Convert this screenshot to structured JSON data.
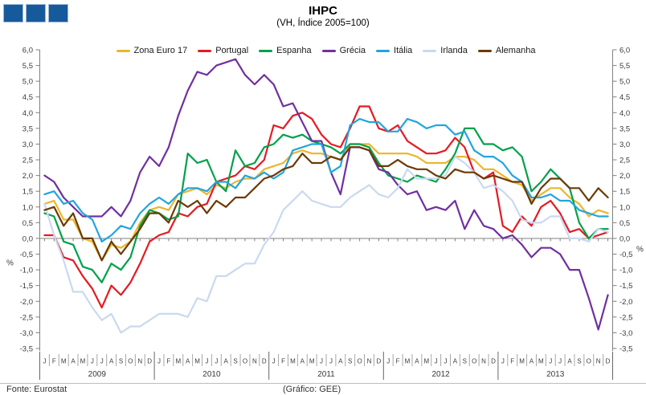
{
  "logo": {
    "square_count": 3,
    "square_color": "#175A9C"
  },
  "header": {
    "title": "IHPC",
    "subtitle": "(VH, Índice 2005=100)"
  },
  "footer": {
    "source": "Fonte: Eurostat",
    "credit": "(Gráfico: GEE)"
  },
  "chart_data": {
    "type": "line",
    "title": "IHPC",
    "subtitle": "(VH, Índice 2005=100)",
    "ylabel": "%",
    "ylim": [
      -3.5,
      6.0
    ],
    "ytick_step": 0.5,
    "decimal_separator": ",",
    "grid": "zero-line-only",
    "legend_position": "top",
    "axis_color": "#808080",
    "label_color": "#3a3a3a",
    "month_letters": [
      "J",
      "F",
      "M",
      "A",
      "M",
      "J",
      "J",
      "A",
      "S",
      "O",
      "N",
      "D"
    ],
    "years": [
      "2009",
      "2010",
      "2011",
      "2012",
      "2013"
    ],
    "series": [
      {
        "name": "Zona Euro 17",
        "color": "#EBB62B",
        "values": [
          1.1,
          1.2,
          0.6,
          0.6,
          0.0,
          -0.1,
          -0.7,
          -0.2,
          -0.3,
          -0.1,
          0.5,
          0.9,
          1.0,
          0.9,
          1.4,
          1.5,
          1.6,
          1.4,
          1.7,
          1.6,
          1.8,
          1.9,
          1.9,
          2.2,
          2.3,
          2.4,
          2.7,
          2.8,
          2.7,
          2.7,
          2.6,
          2.5,
          3.0,
          3.0,
          3.0,
          2.7,
          2.7,
          2.7,
          2.7,
          2.6,
          2.4,
          2.4,
          2.4,
          2.6,
          2.6,
          2.5,
          2.2,
          2.2,
          2.0,
          1.8,
          1.7,
          1.2,
          1.4,
          1.6,
          1.6,
          1.3,
          1.1,
          0.7,
          0.9,
          0.8
        ]
      },
      {
        "name": "Portugal",
        "color": "#E31B23",
        "values": [
          0.1,
          0.1,
          -0.6,
          -0.7,
          -1.2,
          -1.6,
          -2.2,
          -1.5,
          -1.8,
          -1.4,
          -0.8,
          -0.1,
          0.1,
          0.2,
          0.8,
          0.7,
          1.0,
          1.1,
          1.8,
          1.9,
          2.0,
          2.3,
          2.2,
          2.5,
          3.6,
          3.5,
          3.9,
          4.0,
          3.8,
          3.3,
          3.0,
          2.9,
          3.5,
          4.2,
          4.2,
          3.5,
          3.4,
          3.6,
          3.1,
          2.9,
          2.7,
          2.7,
          2.8,
          3.2,
          2.9,
          2.1,
          1.9,
          2.1,
          0.4,
          0.2,
          0.7,
          0.4,
          1.0,
          1.2,
          0.8,
          0.2,
          0.3,
          0.0,
          0.1,
          0.2
        ]
      },
      {
        "name": "Espanha",
        "color": "#00A14B",
        "values": [
          0.8,
          0.7,
          -0.1,
          -0.2,
          -0.9,
          -1.0,
          -1.4,
          -0.8,
          -1.0,
          -0.6,
          0.4,
          0.9,
          0.8,
          0.6,
          0.7,
          2.7,
          2.4,
          2.5,
          1.8,
          1.5,
          2.8,
          2.3,
          2.4,
          2.9,
          3.0,
          3.3,
          3.2,
          3.3,
          3.1,
          3.0,
          2.9,
          2.7,
          3.0,
          3.0,
          2.9,
          2.4,
          2.0,
          1.9,
          1.8,
          2.0,
          1.9,
          1.8,
          2.2,
          2.7,
          3.5,
          3.5,
          3.0,
          3.0,
          2.8,
          2.9,
          2.6,
          1.5,
          1.8,
          2.2,
          1.9,
          1.6,
          0.5,
          0.0,
          0.3,
          0.3
        ]
      },
      {
        "name": "Grécia",
        "color": "#7030A0",
        "values": [
          2.0,
          1.8,
          1.3,
          1.0,
          0.7,
          0.7,
          0.7,
          1.0,
          0.7,
          1.2,
          2.1,
          2.6,
          2.3,
          2.9,
          3.9,
          4.7,
          5.3,
          5.2,
          5.5,
          5.6,
          5.7,
          5.2,
          4.9,
          5.2,
          4.9,
          4.2,
          4.3,
          3.7,
          3.1,
          3.1,
          2.1,
          1.4,
          2.9,
          2.9,
          2.8,
          2.2,
          2.1,
          1.7,
          1.4,
          1.5,
          0.9,
          1.0,
          0.9,
          1.2,
          0.3,
          0.9,
          0.4,
          0.3,
          0.0,
          0.1,
          -0.2,
          -0.6,
          -0.3,
          -0.3,
          -0.5,
          -1.0,
          -1.0,
          -1.9,
          -2.9,
          -1.8
        ]
      },
      {
        "name": "Itália",
        "color": "#22A5DE",
        "values": [
          1.4,
          1.5,
          1.1,
          1.2,
          0.8,
          0.6,
          -0.1,
          0.1,
          0.4,
          0.3,
          0.8,
          1.1,
          1.3,
          1.1,
          1.4,
          1.6,
          1.6,
          1.5,
          1.8,
          1.8,
          1.6,
          2.0,
          1.9,
          2.1,
          1.9,
          2.1,
          2.8,
          2.9,
          3.0,
          3.0,
          2.1,
          2.3,
          3.6,
          3.8,
          3.7,
          3.7,
          3.4,
          3.4,
          3.8,
          3.7,
          3.5,
          3.6,
          3.6,
          3.3,
          3.4,
          2.8,
          2.6,
          2.6,
          2.4,
          2.0,
          1.8,
          1.3,
          1.3,
          1.4,
          1.2,
          1.2,
          0.9,
          0.8,
          0.7,
          0.7
        ]
      },
      {
        "name": "Irlanda",
        "color": "#CAD9F0",
        "values": [
          1.1,
          0.1,
          -0.7,
          -1.7,
          -1.7,
          -2.2,
          -2.6,
          -2.4,
          -3.0,
          -2.8,
          -2.8,
          -2.6,
          -2.4,
          -2.4,
          -2.4,
          -2.5,
          -1.9,
          -2.0,
          -1.2,
          -1.2,
          -1.0,
          -0.8,
          -0.8,
          -0.2,
          0.2,
          0.9,
          1.2,
          1.5,
          1.2,
          1.1,
          1.0,
          1.0,
          1.3,
          1.5,
          1.7,
          1.4,
          1.3,
          1.6,
          2.2,
          1.9,
          1.9,
          1.9,
          2.0,
          2.6,
          2.4,
          2.1,
          1.6,
          1.7,
          1.5,
          1.2,
          0.6,
          0.5,
          0.5,
          0.7,
          0.7,
          0.0,
          0.0,
          -0.1,
          0.3,
          0.2
        ]
      },
      {
        "name": "Alemanha",
        "color": "#6B3A05",
        "values": [
          0.9,
          1.0,
          0.4,
          0.8,
          0.0,
          0.0,
          -0.7,
          -0.1,
          -0.5,
          -0.1,
          0.3,
          0.8,
          0.8,
          0.5,
          1.2,
          1.0,
          1.2,
          0.8,
          1.2,
          1.0,
          1.3,
          1.3,
          1.6,
          1.9,
          2.0,
          2.2,
          2.3,
          2.7,
          2.4,
          2.4,
          2.6,
          2.5,
          2.9,
          2.9,
          2.8,
          2.3,
          2.3,
          2.5,
          2.3,
          2.2,
          2.2,
          2.0,
          1.9,
          2.2,
          2.1,
          2.1,
          1.9,
          2.0,
          1.9,
          1.8,
          1.8,
          1.1,
          1.6,
          1.9,
          1.9,
          1.6,
          1.6,
          1.2,
          1.6,
          1.3
        ]
      }
    ]
  }
}
